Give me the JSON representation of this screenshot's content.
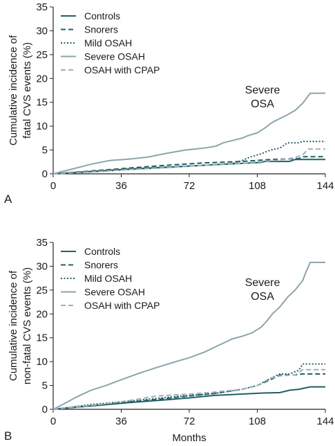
{
  "chart_data": [
    {
      "panel_label": "A",
      "type": "line",
      "ylabel": [
        "Cumulative incidence of",
        "fatal CVS events (%)"
      ],
      "xlabel": "",
      "xlim": [
        0,
        144
      ],
      "ylim": [
        0,
        35
      ],
      "xticks": [
        0,
        36,
        72,
        108,
        144
      ],
      "yticks": [
        0,
        5,
        10,
        15,
        20,
        25,
        30,
        35
      ],
      "annotation": [
        "Severe",
        "OSA"
      ],
      "legend_position": "top-left",
      "grid": false,
      "series": [
        {
          "name": "Controls",
          "style": "solid",
          "color": "#1f5f66",
          "points": [
            [
              0,
              0
            ],
            [
              20,
              0.5
            ],
            [
              40,
              1
            ],
            [
              60,
              1.4
            ],
            [
              80,
              1.8
            ],
            [
              100,
              2.2
            ],
            [
              110,
              2.4
            ],
            [
              112,
              2.6
            ],
            [
              125,
              2.6
            ],
            [
              128,
              3
            ],
            [
              144,
              3
            ]
          ]
        },
        {
          "name": "Snorers",
          "style": "dashed",
          "color": "#1f5f66",
          "points": [
            [
              0,
              0
            ],
            [
              20,
              0.6
            ],
            [
              40,
              1.2
            ],
            [
              60,
              1.8
            ],
            [
              80,
              2.3
            ],
            [
              100,
              2.6
            ],
            [
              115,
              3
            ],
            [
              130,
              3.2
            ],
            [
              132,
              3.6
            ],
            [
              144,
              3.6
            ]
          ]
        },
        {
          "name": "Mild OSAH",
          "style": "dotted",
          "color": "#1f5f66",
          "points": [
            [
              0,
              0
            ],
            [
              20,
              0.4
            ],
            [
              40,
              0.9
            ],
            [
              60,
              1.3
            ],
            [
              80,
              1.8
            ],
            [
              95,
              2.2
            ],
            [
              100,
              2.8
            ],
            [
              104,
              3.5
            ],
            [
              110,
              4.2
            ],
            [
              115,
              5
            ],
            [
              120,
              5.4
            ],
            [
              124,
              6.5
            ],
            [
              130,
              6.5
            ],
            [
              132,
              6.8
            ],
            [
              144,
              6.8
            ]
          ]
        },
        {
          "name": "Severe OSAH",
          "style": "solid",
          "color": "#8aa5ab",
          "points": [
            [
              0,
              0
            ],
            [
              10,
              1
            ],
            [
              20,
              2
            ],
            [
              30,
              2.8
            ],
            [
              40,
              3.1
            ],
            [
              50,
              3.5
            ],
            [
              60,
              4.3
            ],
            [
              70,
              5
            ],
            [
              80,
              5.4
            ],
            [
              86,
              5.8
            ],
            [
              90,
              6.5
            ],
            [
              95,
              7
            ],
            [
              100,
              7.5
            ],
            [
              103,
              8
            ],
            [
              108,
              8.6
            ],
            [
              112,
              9.6
            ],
            [
              116,
              10.8
            ],
            [
              120,
              11.6
            ],
            [
              124,
              12.4
            ],
            [
              128,
              13.3
            ],
            [
              132,
              14.8
            ],
            [
              136,
              16.9
            ],
            [
              144,
              16.9
            ]
          ]
        },
        {
          "name": "OSAH with CPAP",
          "style": "dashed",
          "color": "#9fb0b5",
          "points": [
            [
              0,
              0
            ],
            [
              20,
              0.4
            ],
            [
              40,
              0.9
            ],
            [
              60,
              1.3
            ],
            [
              80,
              1.8
            ],
            [
              100,
              2.2
            ],
            [
              115,
              2.7
            ],
            [
              122,
              3
            ],
            [
              128,
              3.4
            ],
            [
              132,
              4
            ],
            [
              135,
              5.2
            ],
            [
              144,
              5.2
            ]
          ]
        }
      ]
    },
    {
      "panel_label": "B",
      "type": "line",
      "ylabel": [
        "Cumulative incidence of",
        "non-fatal CVS events (%)"
      ],
      "xlabel": "Months",
      "xlim": [
        0,
        144
      ],
      "ylim": [
        0,
        35
      ],
      "xticks": [
        0,
        36,
        72,
        108,
        144
      ],
      "yticks": [
        0,
        5,
        10,
        15,
        20,
        25,
        30,
        35
      ],
      "annotation": [
        "Severe",
        "OSA"
      ],
      "legend_position": "top-left",
      "grid": false,
      "series": [
        {
          "name": "Controls",
          "style": "solid",
          "color": "#1f5f66",
          "points": [
            [
              0,
              0
            ],
            [
              20,
              0.7
            ],
            [
              40,
              1.4
            ],
            [
              60,
              2
            ],
            [
              72,
              2.4
            ],
            [
              85,
              2.9
            ],
            [
              100,
              3.2
            ],
            [
              110,
              3.4
            ],
            [
              120,
              3.5
            ],
            [
              125,
              4
            ],
            [
              130,
              4.2
            ],
            [
              136,
              4.7
            ],
            [
              144,
              4.7
            ]
          ]
        },
        {
          "name": "Snorers",
          "style": "dashed",
          "color": "#1f5f66",
          "points": [
            [
              0,
              0
            ],
            [
              20,
              0.8
            ],
            [
              40,
              1.5
            ],
            [
              60,
              2.3
            ],
            [
              72,
              2.8
            ],
            [
              85,
              3.3
            ],
            [
              100,
              4.2
            ],
            [
              108,
              5
            ],
            [
              115,
              6.2
            ],
            [
              120,
              7.2
            ],
            [
              128,
              7.2
            ],
            [
              132,
              7.4
            ],
            [
              144,
              7.4
            ]
          ]
        },
        {
          "name": "Mild OSAH",
          "style": "dotted",
          "color": "#1f5f66",
          "points": [
            [
              0,
              0
            ],
            [
              20,
              1
            ],
            [
              40,
              1.7
            ],
            [
              60,
              2.5
            ],
            [
              72,
              2.9
            ],
            [
              85,
              3.3
            ],
            [
              100,
              4.2
            ],
            [
              108,
              5
            ],
            [
              115,
              6.5
            ],
            [
              120,
              7.4
            ],
            [
              125,
              7.4
            ],
            [
              130,
              8.2
            ],
            [
              132,
              9.5
            ],
            [
              144,
              9.5
            ]
          ]
        },
        {
          "name": "Severe OSAH",
          "style": "solid",
          "color": "#8aa5ab",
          "points": [
            [
              0,
              0
            ],
            [
              5,
              1
            ],
            [
              12,
              2.5
            ],
            [
              20,
              4
            ],
            [
              28,
              5
            ],
            [
              36,
              6.2
            ],
            [
              45,
              7.5
            ],
            [
              55,
              8.8
            ],
            [
              65,
              10
            ],
            [
              72,
              10.8
            ],
            [
              80,
              12
            ],
            [
              88,
              13.5
            ],
            [
              95,
              14.8
            ],
            [
              100,
              15.3
            ],
            [
              105,
              16
            ],
            [
              110,
              17.2
            ],
            [
              113,
              18.5
            ],
            [
              116,
              20
            ],
            [
              120,
              21.5
            ],
            [
              124,
              23.5
            ],
            [
              128,
              25
            ],
            [
              132,
              27
            ],
            [
              134,
              29
            ],
            [
              136,
              30.8
            ],
            [
              144,
              30.8
            ]
          ]
        },
        {
          "name": "OSAH with CPAP",
          "style": "dashed",
          "color": "#9fb0b5",
          "points": [
            [
              0,
              0
            ],
            [
              20,
              0.8
            ],
            [
              40,
              1.8
            ],
            [
              55,
              2.8
            ],
            [
              72,
              3.2
            ],
            [
              85,
              3.6
            ],
            [
              95,
              4
            ],
            [
              100,
              4.2
            ],
            [
              108,
              5
            ],
            [
              115,
              6.5
            ],
            [
              120,
              7
            ],
            [
              128,
              7.2
            ],
            [
              132,
              8.3
            ],
            [
              144,
              8.3
            ]
          ]
        }
      ]
    }
  ]
}
